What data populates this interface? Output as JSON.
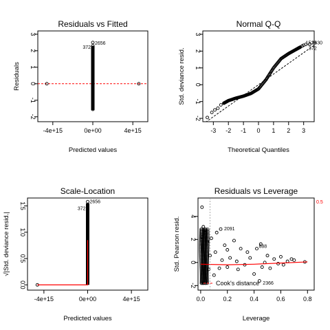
{
  "chart_data": [
    {
      "type": "scatter",
      "title": "Residuals vs Fitted",
      "xlabel": "Predicted values",
      "ylabel": "Residuals",
      "x_ticks": [
        {
          "v": -4000000000000000.0,
          "label": "-4e+15"
        },
        {
          "v": 0,
          "label": "0e+00"
        },
        {
          "v": 4000000000000000.0,
          "label": "4e+15"
        }
      ],
      "y_ticks": [
        {
          "v": -2,
          "label": "-2"
        },
        {
          "v": -1,
          "label": "-1"
        },
        {
          "v": 0,
          "label": "0"
        },
        {
          "v": 1,
          "label": "1"
        },
        {
          "v": 2,
          "label": "2"
        },
        {
          "v": 3,
          "label": "3"
        }
      ],
      "xlim": [
        -5500000000000000.0,
        5500000000000000.0
      ],
      "ylim": [
        -2.3,
        3.2
      ],
      "grid": false,
      "points": [
        {
          "x": -4600000000000000.0,
          "y": 0
        },
        {
          "x": 4600000000000000.0,
          "y": 0
        },
        {
          "x": 0,
          "y": 2.5
        },
        {
          "x": 0,
          "y": 2.3
        },
        {
          "x": 0,
          "y": -1.55
        }
      ],
      "dense_column": {
        "x": 0,
        "y_min": -1.6,
        "y_max": 2.3
      },
      "reference_line": {
        "y": 0,
        "color": "#ff0000",
        "dashed": true
      },
      "annotations": [
        {
          "text": "372",
          "x": 0,
          "y": 2.2,
          "side": "left"
        },
        {
          "text": "2656",
          "x": 0,
          "y": 2.45,
          "side": "right"
        }
      ]
    },
    {
      "type": "scatter",
      "title": "Normal Q-Q",
      "xlabel": "Theoretical Quantiles",
      "ylabel": "Std. deviance resid.",
      "x_ticks": [
        {
          "v": -3,
          "label": "-3"
        },
        {
          "v": -2,
          "label": "-2"
        },
        {
          "v": -1,
          "label": "-1"
        },
        {
          "v": 0,
          "label": "0"
        },
        {
          "v": 1,
          "label": "1"
        },
        {
          "v": 2,
          "label": "2"
        },
        {
          "v": 3,
          "label": "3"
        }
      ],
      "y_ticks": [
        {
          "v": -2,
          "label": "-2"
        },
        {
          "v": -1,
          "label": "-1"
        },
        {
          "v": 0,
          "label": "0"
        },
        {
          "v": 1,
          "label": "1"
        },
        {
          "v": 2,
          "label": "2"
        },
        {
          "v": 3,
          "label": "3"
        }
      ],
      "xlim": [
        -3.7,
        3.7
      ],
      "ylim": [
        -2.2,
        3.2
      ],
      "grid": false,
      "points": [
        {
          "x": -3.4,
          "y": -1.95
        },
        {
          "x": -3.1,
          "y": -1.65
        },
        {
          "x": -2.9,
          "y": -1.5
        },
        {
          "x": -2.7,
          "y": -1.4
        },
        {
          "x": -2.5,
          "y": -1.2
        },
        {
          "x": -2.3,
          "y": -1.1
        }
      ],
      "qq_curve": [
        [
          -2.3,
          -1.1
        ],
        [
          -2.0,
          -0.95
        ],
        [
          -1.5,
          -0.8
        ],
        [
          -1.0,
          -0.68
        ],
        [
          -0.5,
          -0.52
        ],
        [
          0,
          -0.25
        ],
        [
          0.5,
          0.3
        ],
        [
          1.0,
          1.0
        ],
        [
          1.5,
          1.55
        ],
        [
          2.0,
          1.85
        ],
        [
          2.5,
          2.1
        ],
        [
          2.8,
          2.25
        ]
      ],
      "top_points": [
        {
          "x": 2.9,
          "y": 2.3
        },
        {
          "x": 3.0,
          "y": 2.35
        },
        {
          "x": 3.15,
          "y": 2.4
        },
        {
          "x": 3.4,
          "y": 2.4
        }
      ],
      "reference_line": {
        "x1": -3.7,
        "y1": -2.35,
        "x2": 3.7,
        "y2": 2.35,
        "color": "#000000",
        "dashed": true
      },
      "annotations": [
        {
          "text": "1539",
          "x": 3.0,
          "y": 2.48,
          "side": "right"
        },
        {
          "text": "2630",
          "x": 3.4,
          "y": 2.48,
          "side": "right"
        },
        {
          "text": "372",
          "x": 3.2,
          "y": 2.15,
          "side": "right"
        }
      ]
    },
    {
      "type": "scatter",
      "title": "Scale-Location",
      "xlabel": "Predicted values",
      "ylabel": "√|Std. deviance resid.|",
      "x_ticks": [
        {
          "v": -4000000000000000.0,
          "label": "-4e+15"
        },
        {
          "v": 0,
          "label": "0e+00"
        },
        {
          "v": 4000000000000000.0,
          "label": "4e+15"
        }
      ],
      "y_ticks": [
        {
          "v": 0,
          "label": "0.0"
        },
        {
          "v": 0.5,
          "label": "0.5"
        },
        {
          "v": 1.0,
          "label": "1.0"
        },
        {
          "v": 1.5,
          "label": "1.5"
        }
      ],
      "xlim": [
        -5500000000000000.0,
        5500000000000000.0
      ],
      "ylim": [
        -0.1,
        1.65
      ],
      "grid": false,
      "points": [
        {
          "x": -4600000000000000.0,
          "y": 0
        },
        {
          "x": 0,
          "y": 1.58
        },
        {
          "x": 0,
          "y": 1.52
        }
      ],
      "dense_column": {
        "x": 0,
        "y_min": 0,
        "y_max": 1.55
      },
      "smooth_line": [
        [
          -4600000000000000.0,
          0
        ],
        [
          0,
          0
        ],
        [
          0,
          0.85
        ]
      ],
      "smooth_color": "#ff0000",
      "annotations": [
        {
          "text": "372",
          "x": 0,
          "y": 1.45,
          "side": "left"
        },
        {
          "text": "2656",
          "x": 0,
          "y": 1.58,
          "side": "right"
        }
      ]
    },
    {
      "type": "scatter",
      "title": "Residuals vs Leverage",
      "xlabel": "Leverage",
      "ylabel": "Std. Pearson resid.",
      "x_ticks": [
        {
          "v": 0,
          "label": "0.0"
        },
        {
          "v": 0.2,
          "label": "0.2"
        },
        {
          "v": 0.4,
          "label": "0.4"
        },
        {
          "v": 0.6,
          "label": "0.6"
        },
        {
          "v": 0.8,
          "label": "0.8"
        }
      ],
      "y_ticks": [
        {
          "v": -2,
          "label": "-2"
        },
        {
          "v": 0,
          "label": "0"
        },
        {
          "v": 2,
          "label": "2"
        },
        {
          "v": 4,
          "label": "4"
        }
      ],
      "xlim": [
        -0.02,
        0.85
      ],
      "ylim": [
        -2.4,
        5.6
      ],
      "grid": false,
      "points": [
        {
          "x": 0.01,
          "y": 4.8
        },
        {
          "x": 0.02,
          "y": 3.1
        },
        {
          "x": 0.03,
          "y": 2.6
        },
        {
          "x": 0.01,
          "y": 2.2
        },
        {
          "x": 0.05,
          "y": 1.8
        },
        {
          "x": 0.08,
          "y": 2.1
        },
        {
          "x": 0.12,
          "y": 2.6
        },
        {
          "x": 0.15,
          "y": 2.9
        },
        {
          "x": 0.18,
          "y": 1.5
        },
        {
          "x": 0.2,
          "y": 1.1
        },
        {
          "x": 0.25,
          "y": 1.9
        },
        {
          "x": 0.3,
          "y": 1.2
        },
        {
          "x": 0.35,
          "y": 0.9
        },
        {
          "x": 0.42,
          "y": 1.2
        },
        {
          "x": 0.45,
          "y": 1.6
        },
        {
          "x": 0.5,
          "y": 0.6
        },
        {
          "x": 0.55,
          "y": 0.3
        },
        {
          "x": 0.6,
          "y": 0.5
        },
        {
          "x": 0.65,
          "y": 0.1
        },
        {
          "x": 0.7,
          "y": 0.2
        },
        {
          "x": 0.78,
          "y": 0.05
        },
        {
          "x": 0.06,
          "y": -0.6
        },
        {
          "x": 0.1,
          "y": -1.1
        },
        {
          "x": 0.14,
          "y": -0.5
        },
        {
          "x": 0.2,
          "y": -0.4
        },
        {
          "x": 0.28,
          "y": -0.6
        },
        {
          "x": 0.33,
          "y": -0.2
        },
        {
          "x": 0.4,
          "y": -1.0
        },
        {
          "x": 0.46,
          "y": -0.4
        },
        {
          "x": 0.52,
          "y": -0.5
        },
        {
          "x": 0.58,
          "y": -0.1
        },
        {
          "x": 0.44,
          "y": -1.6
        },
        {
          "x": 0.02,
          "y": -1.8
        },
        {
          "x": 0.07,
          "y": 0.6
        },
        {
          "x": 0.11,
          "y": 0.9
        },
        {
          "x": 0.16,
          "y": 0.2
        },
        {
          "x": 0.22,
          "y": 0.4
        },
        {
          "x": 0.27,
          "y": 0.1
        },
        {
          "x": 0.37,
          "y": 0.4
        },
        {
          "x": 0.48,
          "y": 0.0
        },
        {
          "x": 0.62,
          "y": -0.2
        },
        {
          "x": 0.68,
          "y": 0.3
        }
      ],
      "dense_cluster": {
        "x_min": 0,
        "x_max": 0.05,
        "y_min": -1.8,
        "y_max": 3.0
      },
      "smooth_line": [
        [
          0,
          -0.15
        ],
        [
          0.2,
          -0.2
        ],
        [
          0.4,
          -0.15
        ],
        [
          0.6,
          -0.05
        ],
        [
          0.8,
          0.05
        ]
      ],
      "smooth_color": "#ff0000",
      "cooks_contour": {
        "x": 0.07,
        "y1": -2.4,
        "y2": 5.6,
        "label": "0.5",
        "color": "#ff0000"
      },
      "annotations": [
        {
          "text": "2091",
          "x": 0.16,
          "y": 2.9,
          "side": "right"
        },
        {
          "text": "888",
          "x": 0.42,
          "y": 1.4,
          "side": "right"
        },
        {
          "text": "2366",
          "x": 0.45,
          "y": -1.8,
          "side": "right"
        }
      ],
      "legend": {
        "label": "Cook's distance",
        "placement": "bottom-left",
        "color": "#ff0000",
        "dashed": true
      }
    }
  ]
}
